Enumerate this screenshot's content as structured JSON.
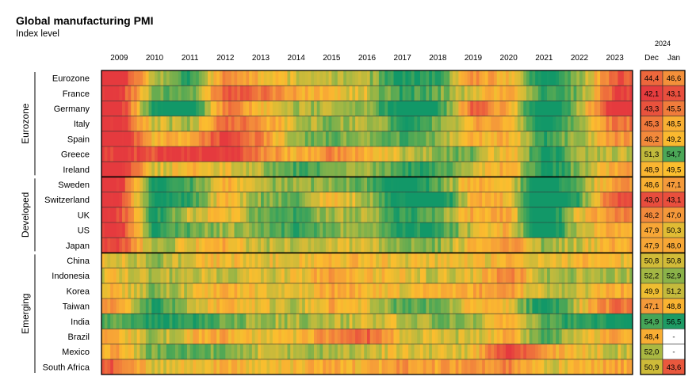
{
  "chart_data": {
    "type": "heatmap",
    "title": "Global manufacturing PMI",
    "subtitle": "Index level",
    "x_years": [
      "2009",
      "2010",
      "2011",
      "2012",
      "2013",
      "2014",
      "2015",
      "2016",
      "2017",
      "2018",
      "2019",
      "2020",
      "2021",
      "2022",
      "2023"
    ],
    "latest": {
      "year": "2024",
      "months": [
        "Dec",
        "Jan"
      ]
    },
    "groups": [
      {
        "name": "Eurozone",
        "rows": [
          0,
          6
        ]
      },
      {
        "name": "Developed",
        "rows": [
          7,
          11
        ]
      },
      {
        "name": "Emerging",
        "rows": [
          12,
          19
        ]
      }
    ],
    "rows": [
      {
        "name": "Eurozone",
        "years": [
          40,
          51,
          56,
          46,
          49,
          51,
          52,
          52,
          57,
          56,
          47,
          49,
          59,
          53,
          44
        ],
        "dec": "44,4",
        "jan": "46,6"
      },
      {
        "name": "France",
        "years": [
          41,
          54,
          54,
          44,
          45,
          48,
          49,
          51,
          56,
          54,
          50,
          48,
          56,
          53,
          43
        ],
        "dec": "42,1",
        "jan": "43,1"
      },
      {
        "name": "Germany",
        "years": [
          40,
          57,
          60,
          45,
          49,
          52,
          52,
          53,
          59,
          57,
          44,
          48,
          61,
          52,
          40
        ],
        "dec": "43,3",
        "jan": "45,5"
      },
      {
        "name": "Italy",
        "years": [
          41,
          51,
          52,
          44,
          47,
          51,
          53,
          51,
          56,
          54,
          48,
          48,
          59,
          52,
          45
        ],
        "dec": "45,3",
        "jan": "48,5"
      },
      {
        "name": "Spain",
        "years": [
          40,
          49,
          48,
          42,
          46,
          53,
          54,
          53,
          55,
          53,
          49,
          48,
          56,
          52,
          47
        ],
        "dec": "46,2",
        "jan": "49,2"
      },
      {
        "name": "Greece",
        "years": [
          42,
          43,
          42,
          41,
          46,
          49,
          46,
          49,
          51,
          53,
          54,
          48,
          58,
          52,
          51
        ],
        "dec": "51,3",
        "jan": "54,7"
      },
      {
        "name": "Ireland",
        "years": [
          40,
          51,
          49,
          50,
          52,
          55,
          54,
          52,
          56,
          55,
          51,
          48,
          58,
          53,
          48
        ],
        "dec": "48,9",
        "jan": "49,5"
      },
      {
        "name": "Sweden",
        "years": [
          41,
          58,
          55,
          48,
          52,
          53,
          53,
          54,
          58,
          55,
          48,
          49,
          61,
          53,
          47
        ],
        "dec": "48,6",
        "jan": "47,1"
      },
      {
        "name": "Switzerland",
        "years": [
          41,
          58,
          56,
          48,
          53,
          54,
          49,
          52,
          58,
          60,
          48,
          49,
          64,
          55,
          43
        ],
        "dec": "43,0",
        "jan": "43,1"
      },
      {
        "name": "UK",
        "years": [
          42,
          57,
          51,
          49,
          54,
          55,
          52,
          52,
          56,
          54,
          48,
          48,
          61,
          50,
          46
        ],
        "dec": "46,2",
        "jan": "47,0"
      },
      {
        "name": "US",
        "years": [
          41,
          57,
          54,
          52,
          53,
          56,
          53,
          52,
          57,
          56,
          51,
          48,
          60,
          51,
          48
        ],
        "dec": "47,9",
        "jan": "50,3"
      },
      {
        "name": "Japan",
        "years": [
          42,
          53,
          50,
          48,
          52,
          51,
          51,
          50,
          53,
          53,
          49,
          46,
          53,
          51,
          48
        ],
        "dec": "47,9",
        "jan": "48,0"
      },
      {
        "name": "China",
        "years": [
          50,
          53,
          50,
          49,
          50,
          50,
          49,
          49,
          50,
          50,
          50,
          49,
          51,
          49,
          50
        ],
        "dec": "50,8",
        "jan": "50,8"
      },
      {
        "name": "Indonesia",
        "years": [
          50,
          52,
          51,
          51,
          51,
          50,
          47,
          49,
          50,
          51,
          50,
          45,
          52,
          52,
          52
        ],
        "dec": "52,2",
        "jan": "52,9"
      },
      {
        "name": "Korea",
        "years": [
          49,
          53,
          51,
          48,
          50,
          50,
          48,
          49,
          50,
          49,
          48,
          47,
          52,
          51,
          48
        ],
        "dec": "49,9",
        "jan": "51,2"
      },
      {
        "name": "Taiwan",
        "years": [
          47,
          56,
          52,
          48,
          50,
          52,
          48,
          50,
          55,
          54,
          49,
          49,
          59,
          50,
          45
        ],
        "dec": "47,1",
        "jan": "48,8"
      },
      {
        "name": "India",
        "years": [
          54,
          57,
          56,
          54,
          52,
          52,
          52,
          51,
          51,
          53,
          52,
          48,
          55,
          56,
          57
        ],
        "dec": "54,9",
        "jan": "56,5"
      },
      {
        "name": "Brazil",
        "years": [
          48,
          53,
          49,
          48,
          50,
          50,
          46,
          44,
          50,
          51,
          51,
          48,
          55,
          51,
          48
        ],
        "dec": "48,4",
        "jan": "-"
      },
      {
        "name": "Mexico",
        "years": [
          48,
          54,
          54,
          53,
          51,
          52,
          52,
          51,
          50,
          51,
          50,
          41,
          48,
          49,
          51
        ],
        "dec": "52,0",
        "jan": "-"
      },
      {
        "name": "South Africa",
        "years": [
          44,
          51,
          50,
          48,
          50,
          49,
          48,
          49,
          47,
          48,
          47,
          46,
          51,
          49,
          48
        ],
        "dec": "50,9",
        "jan": "43,6"
      }
    ]
  }
}
